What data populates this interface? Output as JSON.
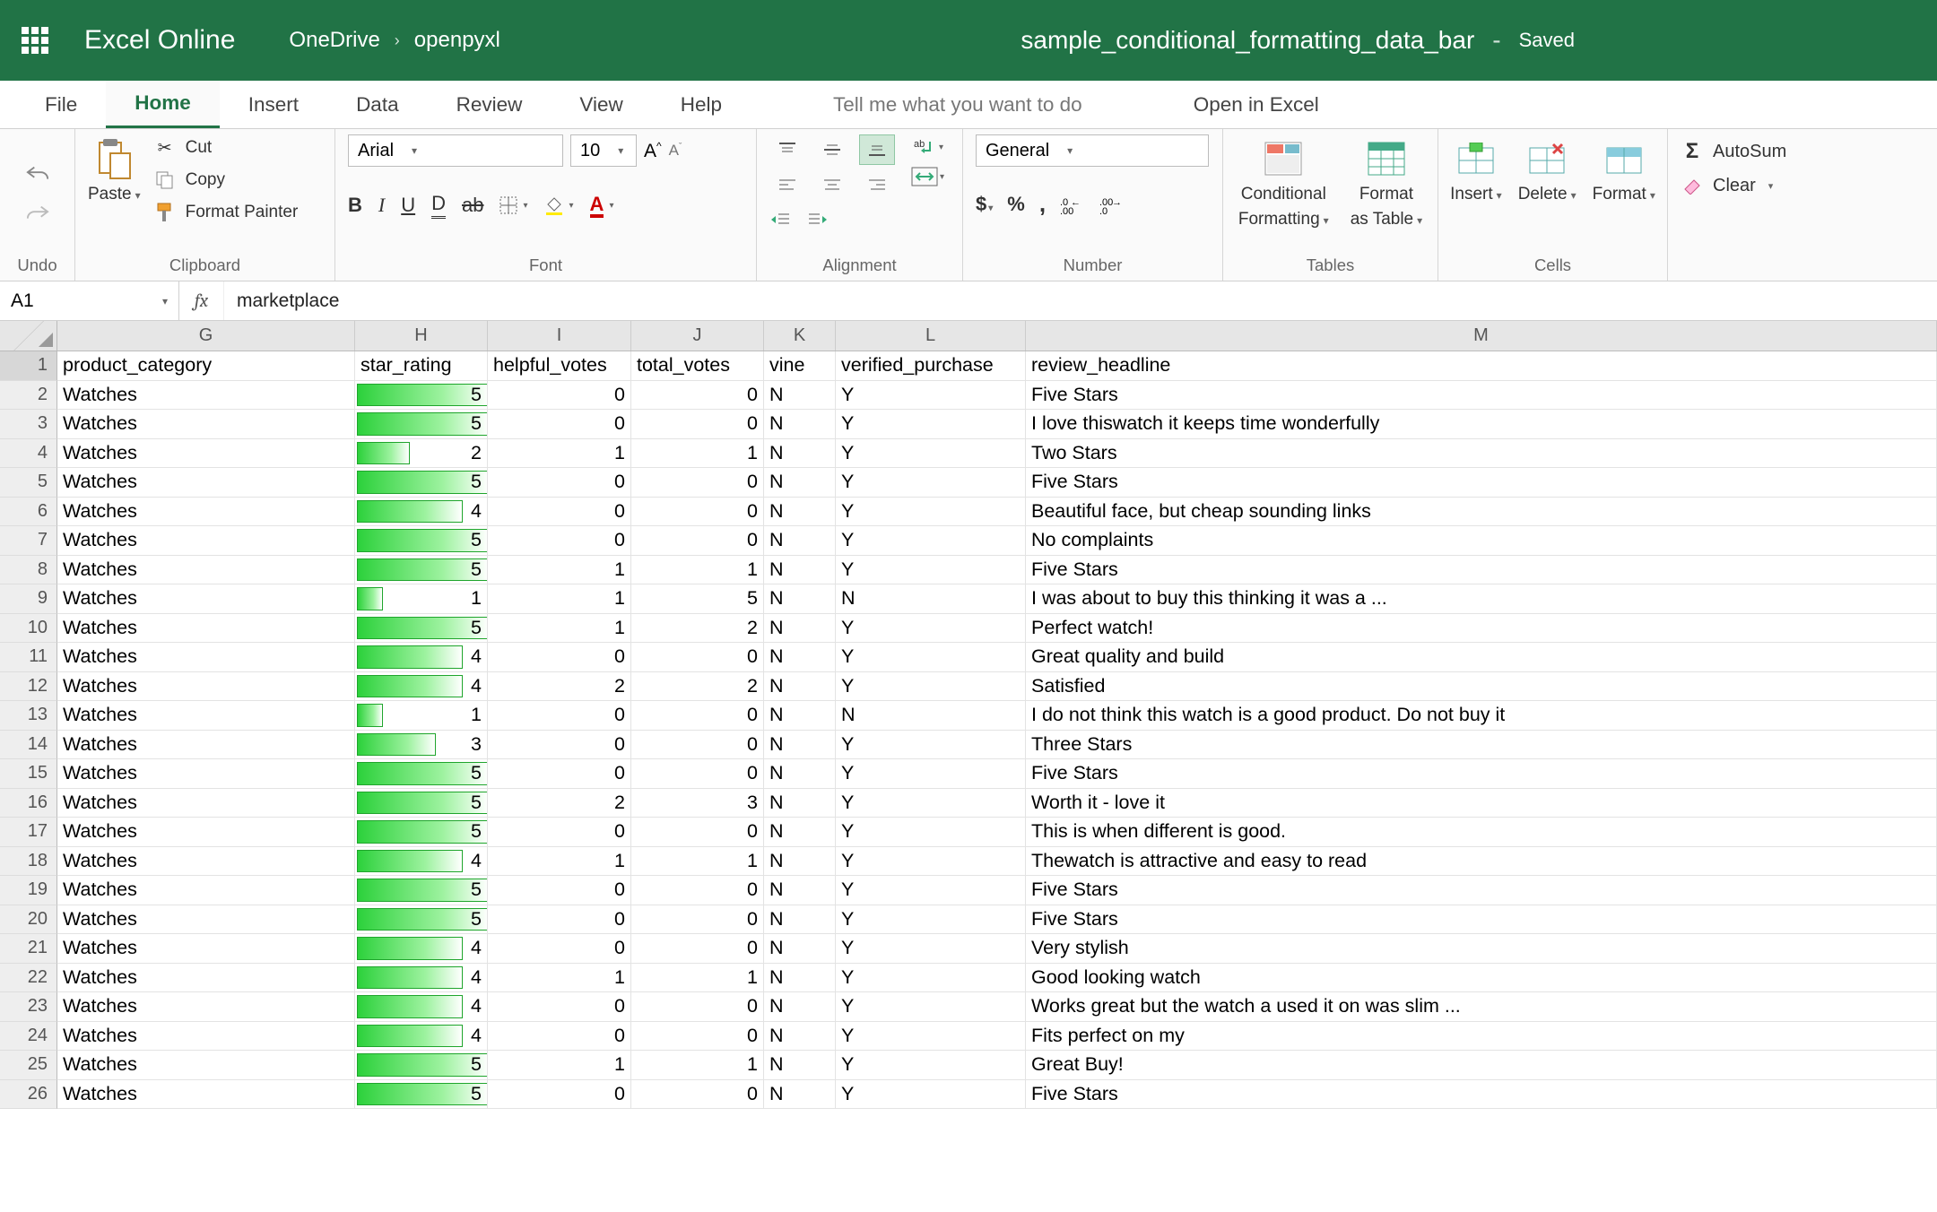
{
  "title": {
    "app": "Excel Online",
    "breadcrumb": [
      "OneDrive",
      "openpyxl"
    ],
    "doc": "sample_conditional_formatting_data_bar",
    "status": "Saved"
  },
  "tabs": {
    "items": [
      "File",
      "Home",
      "Insert",
      "Data",
      "Review",
      "View",
      "Help"
    ],
    "active": 1,
    "tellme": "Tell me what you want to do",
    "openexcel": "Open in Excel"
  },
  "ribbon": {
    "undo": "Undo",
    "clipboard": {
      "paste": "Paste",
      "cut": "Cut",
      "copy": "Copy",
      "fmtpainter": "Format Painter",
      "label": "Clipboard"
    },
    "font": {
      "name": "Arial",
      "size": "10",
      "label": "Font"
    },
    "alignment": {
      "label": "Alignment"
    },
    "number": {
      "format": "General",
      "label": "Number"
    },
    "tables": {
      "cond": "Conditional",
      "cond2": "Formatting",
      "fmt": "Format",
      "fmt2": "as Table",
      "label": "Tables"
    },
    "cells": {
      "insert": "Insert",
      "delete": "Delete",
      "format": "Format",
      "label": "Cells"
    },
    "editing": {
      "autosum": "AutoSum",
      "clear": "Clear"
    }
  },
  "formula": {
    "ref": "A1",
    "value": "marketplace"
  },
  "sheet": {
    "colLetters": [
      "G",
      "H",
      "I",
      "J",
      "K",
      "L",
      "M"
    ],
    "headers": [
      "product_category",
      "star_rating",
      "helpful_votes",
      "total_votes",
      "vine",
      "verified_purchase",
      "review_headline"
    ],
    "star_max": 5,
    "databar_color_start": "#2cd13b",
    "databar_color_end": "#ffffff",
    "databar_border": "#1fa52c",
    "rows": [
      {
        "g": "Watches",
        "h": 5,
        "i": 0,
        "j": 0,
        "k": "N",
        "l": "Y",
        "m": "Five Stars"
      },
      {
        "g": "Watches",
        "h": 5,
        "i": 0,
        "j": 0,
        "k": "N",
        "l": "Y",
        "m": "I love thiswatch it keeps time wonderfully"
      },
      {
        "g": "Watches",
        "h": 2,
        "i": 1,
        "j": 1,
        "k": "N",
        "l": "Y",
        "m": "Two Stars"
      },
      {
        "g": "Watches",
        "h": 5,
        "i": 0,
        "j": 0,
        "k": "N",
        "l": "Y",
        "m": "Five Stars"
      },
      {
        "g": "Watches",
        "h": 4,
        "i": 0,
        "j": 0,
        "k": "N",
        "l": "Y",
        "m": "Beautiful face, but cheap sounding links"
      },
      {
        "g": "Watches",
        "h": 5,
        "i": 0,
        "j": 0,
        "k": "N",
        "l": "Y",
        "m": "No complaints"
      },
      {
        "g": "Watches",
        "h": 5,
        "i": 1,
        "j": 1,
        "k": "N",
        "l": "Y",
        "m": "Five Stars"
      },
      {
        "g": "Watches",
        "h": 1,
        "i": 1,
        "j": 5,
        "k": "N",
        "l": "N",
        "m": "I was about to buy this thinking it was a ..."
      },
      {
        "g": "Watches",
        "h": 5,
        "i": 1,
        "j": 2,
        "k": "N",
        "l": "Y",
        "m": "Perfect watch!"
      },
      {
        "g": "Watches",
        "h": 4,
        "i": 0,
        "j": 0,
        "k": "N",
        "l": "Y",
        "m": "Great quality and build"
      },
      {
        "g": "Watches",
        "h": 4,
        "i": 2,
        "j": 2,
        "k": "N",
        "l": "Y",
        "m": "Satisfied"
      },
      {
        "g": "Watches",
        "h": 1,
        "i": 0,
        "j": 0,
        "k": "N",
        "l": "N",
        "m": "I do not think this watch is a good product. Do not buy it"
      },
      {
        "g": "Watches",
        "h": 3,
        "i": 0,
        "j": 0,
        "k": "N",
        "l": "Y",
        "m": "Three Stars"
      },
      {
        "g": "Watches",
        "h": 5,
        "i": 0,
        "j": 0,
        "k": "N",
        "l": "Y",
        "m": "Five Stars"
      },
      {
        "g": "Watches",
        "h": 5,
        "i": 2,
        "j": 3,
        "k": "N",
        "l": "Y",
        "m": "Worth it - love it"
      },
      {
        "g": "Watches",
        "h": 5,
        "i": 0,
        "j": 0,
        "k": "N",
        "l": "Y",
        "m": "This is when different is good."
      },
      {
        "g": "Watches",
        "h": 4,
        "i": 1,
        "j": 1,
        "k": "N",
        "l": "Y",
        "m": "Thewatch is attractive and easy to read"
      },
      {
        "g": "Watches",
        "h": 5,
        "i": 0,
        "j": 0,
        "k": "N",
        "l": "Y",
        "m": "Five Stars"
      },
      {
        "g": "Watches",
        "h": 5,
        "i": 0,
        "j": 0,
        "k": "N",
        "l": "Y",
        "m": "Five Stars"
      },
      {
        "g": "Watches",
        "h": 4,
        "i": 0,
        "j": 0,
        "k": "N",
        "l": "Y",
        "m": "Very stylish"
      },
      {
        "g": "Watches",
        "h": 4,
        "i": 1,
        "j": 1,
        "k": "N",
        "l": "Y",
        "m": "Good looking watch"
      },
      {
        "g": "Watches",
        "h": 4,
        "i": 0,
        "j": 0,
        "k": "N",
        "l": "Y",
        "m": "Works great but the watch a used it on was slim ..."
      },
      {
        "g": "Watches",
        "h": 4,
        "i": 0,
        "j": 0,
        "k": "N",
        "l": "Y",
        "m": "Fits perfect on my"
      },
      {
        "g": "Watches",
        "h": 5,
        "i": 1,
        "j": 1,
        "k": "N",
        "l": "Y",
        "m": "Great Buy!"
      },
      {
        "g": "Watches",
        "h": 5,
        "i": 0,
        "j": 0,
        "k": "N",
        "l": "Y",
        "m": "Five Stars"
      }
    ]
  }
}
